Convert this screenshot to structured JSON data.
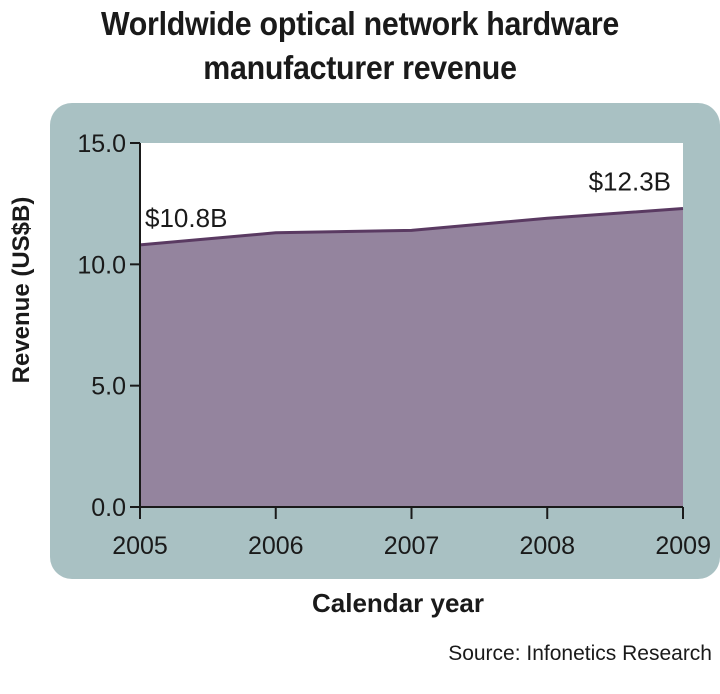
{
  "chart_data": {
    "type": "area",
    "title_lines": [
      "Worldwide optical network hardware",
      "manufacturer revenue"
    ],
    "xlabel": "Calendar year",
    "ylabel": "Revenue (US$B)",
    "x": [
      "2005",
      "2006",
      "2007",
      "2008",
      "2009"
    ],
    "series": [
      {
        "values": [
          10.8,
          11.3,
          11.4,
          11.9,
          12.3
        ]
      }
    ],
    "ylim": [
      0,
      15
    ],
    "yticks": [
      "0.0",
      "5.0",
      "10.0",
      "15.0"
    ],
    "ytick_values": [
      0,
      5,
      10,
      15
    ],
    "annotations": [
      {
        "text": "$10.8B",
        "x": "2005",
        "y": 10.8
      },
      {
        "text": "$12.3B",
        "x": "2009",
        "y": 12.3
      }
    ],
    "source": "Source: Infonetics Research",
    "grid": false,
    "colors": {
      "area_fill": "#94849e",
      "area_line": "#5a3a62",
      "panel": "#a9c1c3",
      "plot_bg": "#ffffff"
    }
  }
}
